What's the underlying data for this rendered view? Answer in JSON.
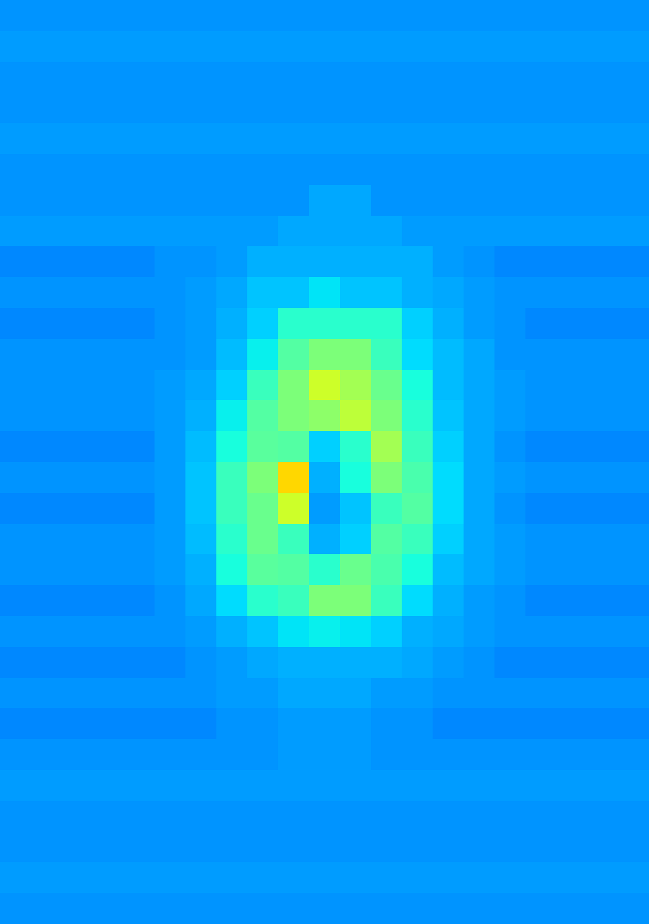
{
  "chart_data": {
    "type": "heatmap",
    "color": "jet",
    "color_range": [
      0,
      1
    ],
    "tick_labels": false,
    "cells": [
      [
        0.27,
        0.27,
        0.27,
        0.27,
        0.27,
        0.27,
        0.27,
        0.27,
        0.27,
        0.27,
        0.27,
        0.27,
        0.27,
        0.27,
        0.27,
        0.27,
        0.27,
        0.27,
        0.27,
        0.27,
        0.27
      ],
      [
        0.28,
        0.28,
        0.28,
        0.28,
        0.28,
        0.28,
        0.28,
        0.28,
        0.28,
        0.28,
        0.28,
        0.28,
        0.28,
        0.28,
        0.28,
        0.28,
        0.28,
        0.28,
        0.28,
        0.28,
        0.28
      ],
      [
        0.27,
        0.27,
        0.27,
        0.27,
        0.27,
        0.27,
        0.27,
        0.27,
        0.27,
        0.27,
        0.27,
        0.27,
        0.27,
        0.27,
        0.27,
        0.27,
        0.27,
        0.27,
        0.27,
        0.27,
        0.27
      ],
      [
        0.27,
        0.27,
        0.27,
        0.27,
        0.27,
        0.27,
        0.27,
        0.27,
        0.27,
        0.27,
        0.27,
        0.27,
        0.27,
        0.27,
        0.27,
        0.27,
        0.27,
        0.27,
        0.27,
        0.27,
        0.27
      ],
      [
        0.28,
        0.28,
        0.28,
        0.28,
        0.28,
        0.28,
        0.28,
        0.28,
        0.28,
        0.28,
        0.28,
        0.28,
        0.28,
        0.28,
        0.28,
        0.28,
        0.28,
        0.28,
        0.28,
        0.28,
        0.28
      ],
      [
        0.27,
        0.27,
        0.27,
        0.27,
        0.27,
        0.27,
        0.27,
        0.27,
        0.27,
        0.27,
        0.27,
        0.27,
        0.27,
        0.27,
        0.27,
        0.27,
        0.27,
        0.27,
        0.27,
        0.27,
        0.27
      ],
      [
        0.27,
        0.27,
        0.27,
        0.27,
        0.27,
        0.27,
        0.27,
        0.27,
        0.27,
        0.27,
        0.29,
        0.29,
        0.27,
        0.27,
        0.27,
        0.27,
        0.27,
        0.27,
        0.27,
        0.27,
        0.27
      ],
      [
        0.28,
        0.28,
        0.28,
        0.28,
        0.28,
        0.28,
        0.28,
        0.28,
        0.28,
        0.29,
        0.29,
        0.29,
        0.29,
        0.28,
        0.28,
        0.28,
        0.28,
        0.28,
        0.28,
        0.28,
        0.28
      ],
      [
        0.26,
        0.26,
        0.26,
        0.26,
        0.26,
        0.27,
        0.27,
        0.28,
        0.3,
        0.3,
        0.3,
        0.3,
        0.3,
        0.3,
        0.28,
        0.27,
        0.26,
        0.26,
        0.26,
        0.26,
        0.26
      ],
      [
        0.27,
        0.27,
        0.27,
        0.27,
        0.27,
        0.27,
        0.28,
        0.29,
        0.32,
        0.32,
        0.35,
        0.32,
        0.32,
        0.3,
        0.29,
        0.28,
        0.27,
        0.27,
        0.27,
        0.27,
        0.27
      ],
      [
        0.26,
        0.26,
        0.26,
        0.26,
        0.26,
        0.27,
        0.28,
        0.3,
        0.33,
        0.4,
        0.4,
        0.4,
        0.4,
        0.33,
        0.3,
        0.28,
        0.27,
        0.26,
        0.26,
        0.26,
        0.26
      ],
      [
        0.27,
        0.27,
        0.27,
        0.27,
        0.27,
        0.27,
        0.28,
        0.31,
        0.36,
        0.45,
        0.5,
        0.5,
        0.42,
        0.34,
        0.31,
        0.29,
        0.27,
        0.27,
        0.27,
        0.27,
        0.27
      ],
      [
        0.27,
        0.27,
        0.27,
        0.27,
        0.27,
        0.28,
        0.29,
        0.33,
        0.42,
        0.5,
        0.6,
        0.55,
        0.48,
        0.38,
        0.31,
        0.29,
        0.28,
        0.27,
        0.27,
        0.27,
        0.27
      ],
      [
        0.27,
        0.27,
        0.27,
        0.27,
        0.27,
        0.28,
        0.3,
        0.36,
        0.45,
        0.5,
        0.52,
        0.58,
        0.5,
        0.4,
        0.32,
        0.29,
        0.28,
        0.27,
        0.27,
        0.27,
        0.27
      ],
      [
        0.26,
        0.26,
        0.26,
        0.26,
        0.26,
        0.28,
        0.31,
        0.38,
        0.46,
        0.45,
        0.33,
        0.4,
        0.55,
        0.42,
        0.33,
        0.29,
        0.27,
        0.26,
        0.26,
        0.26,
        0.26
      ],
      [
        0.27,
        0.27,
        0.27,
        0.27,
        0.27,
        0.28,
        0.32,
        0.42,
        0.5,
        0.68,
        0.3,
        0.38,
        0.5,
        0.44,
        0.34,
        0.29,
        0.28,
        0.27,
        0.27,
        0.27,
        0.27
      ],
      [
        0.26,
        0.26,
        0.26,
        0.26,
        0.26,
        0.28,
        0.32,
        0.42,
        0.48,
        0.6,
        0.28,
        0.32,
        0.42,
        0.45,
        0.34,
        0.29,
        0.27,
        0.26,
        0.26,
        0.26,
        0.26
      ],
      [
        0.27,
        0.27,
        0.27,
        0.27,
        0.27,
        0.28,
        0.31,
        0.4,
        0.48,
        0.42,
        0.3,
        0.33,
        0.45,
        0.42,
        0.33,
        0.29,
        0.28,
        0.27,
        0.27,
        0.27,
        0.27
      ],
      [
        0.27,
        0.27,
        0.27,
        0.27,
        0.27,
        0.28,
        0.3,
        0.38,
        0.46,
        0.45,
        0.4,
        0.48,
        0.44,
        0.38,
        0.31,
        0.29,
        0.28,
        0.27,
        0.27,
        0.27,
        0.27
      ],
      [
        0.26,
        0.26,
        0.26,
        0.26,
        0.26,
        0.27,
        0.29,
        0.34,
        0.4,
        0.42,
        0.5,
        0.5,
        0.42,
        0.34,
        0.3,
        0.28,
        0.27,
        0.26,
        0.26,
        0.26,
        0.26
      ],
      [
        0.27,
        0.27,
        0.27,
        0.27,
        0.27,
        0.27,
        0.28,
        0.3,
        0.32,
        0.35,
        0.36,
        0.35,
        0.33,
        0.3,
        0.29,
        0.28,
        0.27,
        0.27,
        0.27,
        0.27,
        0.27
      ],
      [
        0.26,
        0.26,
        0.26,
        0.26,
        0.26,
        0.26,
        0.27,
        0.28,
        0.29,
        0.3,
        0.3,
        0.3,
        0.3,
        0.29,
        0.28,
        0.27,
        0.26,
        0.26,
        0.26,
        0.26,
        0.26
      ],
      [
        0.27,
        0.27,
        0.27,
        0.27,
        0.27,
        0.27,
        0.27,
        0.28,
        0.28,
        0.29,
        0.29,
        0.29,
        0.28,
        0.28,
        0.27,
        0.27,
        0.27,
        0.27,
        0.27,
        0.27,
        0.27
      ],
      [
        0.26,
        0.26,
        0.26,
        0.26,
        0.26,
        0.26,
        0.26,
        0.27,
        0.27,
        0.28,
        0.28,
        0.28,
        0.27,
        0.27,
        0.26,
        0.26,
        0.26,
        0.26,
        0.26,
        0.26,
        0.26
      ],
      [
        0.27,
        0.27,
        0.27,
        0.27,
        0.27,
        0.27,
        0.27,
        0.27,
        0.27,
        0.28,
        0.28,
        0.28,
        0.27,
        0.27,
        0.27,
        0.27,
        0.27,
        0.27,
        0.27,
        0.27,
        0.27
      ],
      [
        0.28,
        0.28,
        0.28,
        0.28,
        0.28,
        0.28,
        0.28,
        0.28,
        0.28,
        0.28,
        0.28,
        0.28,
        0.28,
        0.28,
        0.28,
        0.28,
        0.28,
        0.28,
        0.28,
        0.28,
        0.28
      ],
      [
        0.27,
        0.27,
        0.27,
        0.27,
        0.27,
        0.27,
        0.27,
        0.27,
        0.27,
        0.27,
        0.27,
        0.27,
        0.27,
        0.27,
        0.27,
        0.27,
        0.27,
        0.27,
        0.27,
        0.27,
        0.27
      ],
      [
        0.27,
        0.27,
        0.27,
        0.27,
        0.27,
        0.27,
        0.27,
        0.27,
        0.27,
        0.27,
        0.27,
        0.27,
        0.27,
        0.27,
        0.27,
        0.27,
        0.27,
        0.27,
        0.27,
        0.27,
        0.27
      ],
      [
        0.28,
        0.28,
        0.28,
        0.28,
        0.28,
        0.28,
        0.28,
        0.28,
        0.28,
        0.28,
        0.28,
        0.28,
        0.28,
        0.28,
        0.28,
        0.28,
        0.28,
        0.28,
        0.28,
        0.28,
        0.28
      ],
      [
        0.27,
        0.27,
        0.27,
        0.27,
        0.27,
        0.27,
        0.27,
        0.27,
        0.27,
        0.27,
        0.27,
        0.27,
        0.27,
        0.27,
        0.27,
        0.27,
        0.27,
        0.27,
        0.27,
        0.27,
        0.27
      ]
    ]
  }
}
